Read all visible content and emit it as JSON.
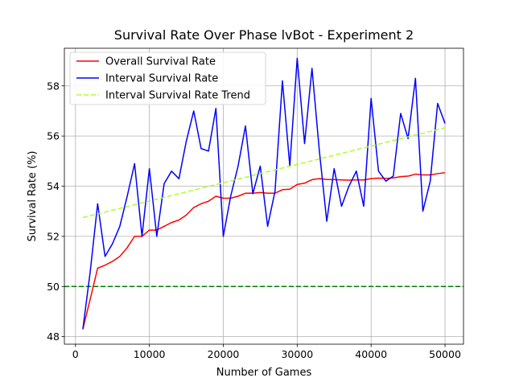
{
  "chart_data": {
    "type": "line",
    "title": "Survival Rate Over Phase lvBot - Experiment 2",
    "xlabel": "Number of Games",
    "ylabel": "Survival Rate (%)",
    "xlim": [
      -1500,
      52500
    ],
    "ylim": [
      47.7,
      59.5
    ],
    "xticks": [
      0,
      10000,
      20000,
      30000,
      40000,
      50000
    ],
    "yticks": [
      48,
      50,
      52,
      54,
      56,
      58
    ],
    "grid": true,
    "legend_position": "top-left",
    "reference_line": {
      "y": 50,
      "color": "#008000",
      "style": "dashed"
    },
    "x": [
      1000,
      2000,
      3000,
      4000,
      5000,
      6000,
      7000,
      8000,
      9000,
      10000,
      11000,
      12000,
      13000,
      14000,
      15000,
      16000,
      17000,
      18000,
      19000,
      20000,
      21000,
      22000,
      23000,
      24000,
      25000,
      26000,
      27000,
      28000,
      29000,
      30000,
      31000,
      32000,
      33000,
      34000,
      35000,
      36000,
      37000,
      38000,
      39000,
      40000,
      41000,
      42000,
      43000,
      44000,
      45000,
      46000,
      47000,
      48000,
      49000,
      50000
    ],
    "series": [
      {
        "name": "Overall Survival Rate",
        "color": "#ff0000",
        "style": "solid",
        "values": [
          48.3,
          49.5,
          50.73,
          50.85,
          51.0,
          51.2,
          51.55,
          52.0,
          52.0,
          52.25,
          52.25,
          52.4,
          52.55,
          52.65,
          52.85,
          53.15,
          53.3,
          53.4,
          53.6,
          53.52,
          53.52,
          53.6,
          53.72,
          53.72,
          53.75,
          53.72,
          53.72,
          53.86,
          53.88,
          54.07,
          54.12,
          54.26,
          54.3,
          54.27,
          54.26,
          54.25,
          54.24,
          54.25,
          54.25,
          54.3,
          54.32,
          54.31,
          54.33,
          54.38,
          54.4,
          54.48,
          54.45,
          54.45,
          54.5,
          54.54
        ]
      },
      {
        "name": "Interval Survival Rate",
        "color": "#0000ff",
        "style": "solid",
        "values": [
          48.3,
          50.6,
          53.3,
          51.2,
          51.7,
          52.4,
          53.6,
          54.9,
          52.0,
          54.7,
          52.0,
          54.1,
          54.6,
          54.3,
          55.8,
          57.0,
          55.5,
          55.4,
          57.1,
          52.0,
          53.6,
          54.8,
          56.4,
          53.7,
          54.8,
          52.4,
          53.8,
          58.2,
          54.8,
          59.1,
          55.7,
          58.7,
          55.4,
          52.6,
          54.7,
          53.2,
          54.0,
          54.6,
          53.2,
          57.5,
          54.6,
          54.2,
          54.4,
          56.9,
          55.9,
          58.3,
          53.0,
          54.2,
          57.3,
          56.5
        ]
      },
      {
        "name": "Interval Survival Rate Trend",
        "color": "#adff2f",
        "style": "dashed",
        "x": [
          1000,
          50000
        ],
        "values": [
          52.75,
          56.33
        ]
      }
    ]
  }
}
